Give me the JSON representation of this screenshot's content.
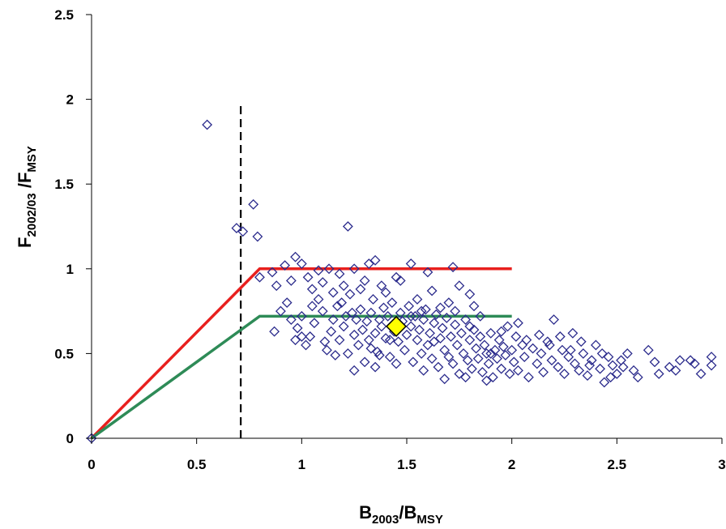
{
  "chart_data": {
    "type": "scatter",
    "xlabel": {
      "base1": "B",
      "sub1": "2003",
      "base2": "/B",
      "sub2": "MSY"
    },
    "ylabel": {
      "base1": "F",
      "sub1": "2002/03",
      "base2": " /F",
      "sub2": "MSY"
    },
    "xlim": [
      0,
      3
    ],
    "ylim": [
      0,
      2.5
    ],
    "x_ticks": [
      "0",
      "0.5",
      "1",
      "1.5",
      "2",
      "2.5",
      "3"
    ],
    "y_ticks": [
      "0",
      "0.5",
      "1",
      "1.5",
      "2",
      "2.5"
    ],
    "grid": false,
    "legend": "none",
    "reference_lines": [
      {
        "kind": "vertical-dashed",
        "x": 0.71,
        "y_range": [
          0,
          1.96
        ],
        "color": "#000000"
      },
      {
        "kind": "polyline",
        "color": "#e8201e",
        "points": [
          [
            0,
            0
          ],
          [
            0.8,
            1.0
          ],
          [
            2.0,
            1.0
          ]
        ]
      },
      {
        "kind": "polyline",
        "color": "#2e8b57",
        "points": [
          [
            0,
            0
          ],
          [
            0.8,
            0.72
          ],
          [
            2.0,
            0.72
          ]
        ]
      }
    ],
    "highlight_point": {
      "x": 1.45,
      "y": 0.66,
      "fill": "#ffff00",
      "stroke": "#000000"
    },
    "series": [
      {
        "marker": "open-diamond",
        "color": "#2b2b8c",
        "points": [
          [
            0.0,
            0.0
          ],
          [
            0.55,
            1.85
          ],
          [
            0.69,
            1.24
          ],
          [
            0.72,
            1.22
          ],
          [
            0.77,
            1.38
          ],
          [
            0.79,
            1.19
          ],
          [
            1.22,
            1.25
          ],
          [
            0.8,
            0.95
          ],
          [
            0.86,
            0.98
          ],
          [
            0.88,
            0.9
          ],
          [
            0.92,
            1.02
          ],
          [
            0.95,
            0.93
          ],
          [
            0.97,
            1.07
          ],
          [
            1.0,
            1.03
          ],
          [
            1.03,
            0.95
          ],
          [
            1.08,
            0.99
          ],
          [
            1.13,
            1.0
          ],
          [
            1.18,
            0.97
          ],
          [
            1.25,
            1.0
          ],
          [
            1.32,
            1.03
          ],
          [
            1.35,
            1.05
          ],
          [
            1.52,
            1.03
          ],
          [
            1.6,
            0.98
          ],
          [
            1.72,
            1.01
          ],
          [
            1.8,
            0.85
          ],
          [
            1.47,
            0.93
          ],
          [
            1.38,
            0.9
          ],
          [
            1.28,
            0.88
          ],
          [
            0.87,
            0.63
          ],
          [
            0.9,
            0.75
          ],
          [
            0.93,
            0.8
          ],
          [
            0.97,
            0.58
          ],
          [
            0.98,
            0.65
          ],
          [
            1.0,
            0.72
          ],
          [
            1.02,
            0.55
          ],
          [
            1.04,
            0.6
          ],
          [
            1.06,
            0.68
          ],
          [
            1.08,
            0.82
          ],
          [
            1.1,
            0.75
          ],
          [
            1.12,
            0.52
          ],
          [
            1.14,
            0.63
          ],
          [
            1.15,
            0.7
          ],
          [
            1.17,
            0.78
          ],
          [
            1.18,
            0.58
          ],
          [
            1.2,
            0.66
          ],
          [
            1.21,
            0.72
          ],
          [
            1.22,
            0.5
          ],
          [
            1.23,
            0.85
          ],
          [
            1.25,
            0.61
          ],
          [
            1.26,
            0.7
          ],
          [
            1.27,
            0.55
          ],
          [
            1.28,
            0.76
          ],
          [
            1.29,
            0.64
          ],
          [
            1.3,
            0.45
          ],
          [
            1.31,
            0.69
          ],
          [
            1.32,
            0.58
          ],
          [
            1.33,
            0.74
          ],
          [
            1.34,
            0.82
          ],
          [
            1.35,
            0.62
          ],
          [
            1.36,
            0.51
          ],
          [
            1.37,
            0.7
          ],
          [
            1.38,
            0.66
          ],
          [
            1.39,
            0.77
          ],
          [
            1.4,
            0.59
          ],
          [
            1.41,
            0.72
          ],
          [
            1.42,
            0.48
          ],
          [
            1.43,
            0.8
          ],
          [
            1.44,
            0.63
          ],
          [
            1.46,
            0.57
          ],
          [
            1.47,
            0.74
          ],
          [
            1.48,
            0.69
          ],
          [
            1.49,
            0.52
          ],
          [
            1.5,
            0.61
          ],
          [
            1.51,
            0.78
          ],
          [
            1.52,
            0.66
          ],
          [
            1.53,
            0.45
          ],
          [
            1.54,
            0.72
          ],
          [
            1.55,
            0.58
          ],
          [
            1.56,
            0.64
          ],
          [
            1.57,
            0.5
          ],
          [
            1.58,
            0.7
          ],
          [
            1.59,
            0.76
          ],
          [
            1.6,
            0.55
          ],
          [
            1.61,
            0.62
          ],
          [
            1.62,
            0.47
          ],
          [
            1.63,
            0.68
          ],
          [
            1.64,
            0.73
          ],
          [
            1.65,
            0.42
          ],
          [
            1.66,
            0.59
          ],
          [
            1.67,
            0.65
          ],
          [
            1.68,
            0.52
          ],
          [
            1.69,
            0.71
          ],
          [
            1.7,
            0.48
          ],
          [
            1.71,
            0.6
          ],
          [
            1.72,
            0.44
          ],
          [
            1.73,
            0.67
          ],
          [
            1.74,
            0.55
          ],
          [
            1.75,
            0.38
          ],
          [
            1.76,
            0.62
          ],
          [
            1.77,
            0.5
          ],
          [
            1.78,
            0.7
          ],
          [
            1.79,
            0.46
          ],
          [
            1.8,
            0.58
          ],
          [
            1.81,
            0.41
          ],
          [
            1.82,
            0.64
          ],
          [
            1.83,
            0.53
          ],
          [
            1.84,
            0.47
          ],
          [
            1.85,
            0.6
          ],
          [
            1.86,
            0.39
          ],
          [
            1.87,
            0.55
          ],
          [
            1.88,
            0.5
          ],
          [
            1.89,
            0.44
          ],
          [
            1.9,
            0.62
          ],
          [
            1.91,
            0.36
          ],
          [
            1.92,
            0.52
          ],
          [
            1.93,
            0.47
          ],
          [
            1.94,
            0.58
          ],
          [
            1.95,
            0.41
          ],
          [
            1.96,
            0.54
          ],
          [
            1.97,
            0.49
          ],
          [
            1.98,
            0.66
          ],
          [
            1.99,
            0.38
          ],
          [
            2.0,
            0.52
          ],
          [
            2.01,
            0.45
          ],
          [
            2.02,
            0.6
          ],
          [
            2.03,
            0.4
          ],
          [
            2.05,
            0.55
          ],
          [
            2.06,
            0.48
          ],
          [
            2.08,
            0.36
          ],
          [
            2.1,
            0.53
          ],
          [
            2.12,
            0.44
          ],
          [
            2.14,
            0.5
          ],
          [
            2.15,
            0.39
          ],
          [
            2.17,
            0.57
          ],
          [
            2.19,
            0.46
          ],
          [
            2.2,
            0.7
          ],
          [
            2.22,
            0.42
          ],
          [
            2.24,
            0.52
          ],
          [
            2.25,
            0.38
          ],
          [
            2.27,
            0.48
          ],
          [
            2.29,
            0.62
          ],
          [
            2.3,
            0.44
          ],
          [
            2.32,
            0.4
          ],
          [
            2.34,
            0.5
          ],
          [
            2.36,
            0.37
          ],
          [
            2.38,
            0.46
          ],
          [
            2.4,
            0.55
          ],
          [
            2.42,
            0.41
          ],
          [
            2.44,
            0.33
          ],
          [
            2.46,
            0.48
          ],
          [
            2.48,
            0.43
          ],
          [
            2.5,
            0.38
          ],
          [
            2.52,
            0.46
          ],
          [
            2.55,
            0.5
          ],
          [
            2.6,
            0.36
          ],
          [
            2.65,
            0.52
          ],
          [
            2.7,
            0.38
          ],
          [
            2.75,
            0.42
          ],
          [
            2.8,
            0.46
          ],
          [
            2.87,
            0.44
          ],
          [
            2.9,
            0.38
          ],
          [
            2.95,
            0.48
          ],
          [
            2.95,
            0.43
          ],
          [
            1.05,
            0.88
          ],
          [
            1.1,
            0.92
          ],
          [
            1.15,
            0.86
          ],
          [
            1.2,
            0.9
          ],
          [
            1.3,
            0.93
          ],
          [
            1.4,
            0.86
          ],
          [
            1.45,
            0.95
          ],
          [
            1.55,
            0.82
          ],
          [
            1.62,
            0.87
          ],
          [
            1.7,
            0.8
          ],
          [
            1.75,
            0.9
          ],
          [
            1.82,
            0.78
          ],
          [
            1.25,
            0.4
          ],
          [
            1.35,
            0.42
          ],
          [
            1.45,
            0.44
          ],
          [
            1.58,
            0.4
          ],
          [
            1.68,
            0.35
          ],
          [
            1.78,
            0.36
          ],
          [
            1.88,
            0.34
          ],
          [
            0.95,
            0.7
          ],
          [
            1.0,
            0.6
          ],
          [
            1.05,
            0.78
          ],
          [
            1.11,
            0.57
          ],
          [
            1.16,
            0.49
          ],
          [
            1.19,
            0.8
          ],
          [
            1.24,
            0.74
          ],
          [
            1.33,
            0.53
          ],
          [
            1.37,
            0.49
          ],
          [
            1.42,
            0.58
          ],
          [
            1.52,
            0.72
          ],
          [
            1.57,
            0.75
          ],
          [
            1.63,
            0.57
          ],
          [
            1.66,
            0.77
          ],
          [
            1.73,
            0.75
          ],
          [
            1.8,
            0.66
          ],
          [
            1.85,
            0.72
          ],
          [
            1.9,
            0.5
          ],
          [
            1.95,
            0.63
          ],
          [
            2.03,
            0.68
          ],
          [
            2.07,
            0.58
          ],
          [
            2.13,
            0.61
          ],
          [
            2.18,
            0.55
          ],
          [
            2.23,
            0.6
          ],
          [
            2.28,
            0.52
          ],
          [
            2.33,
            0.57
          ],
          [
            2.37,
            0.43
          ],
          [
            2.43,
            0.5
          ],
          [
            2.47,
            0.36
          ],
          [
            2.53,
            0.42
          ],
          [
            2.58,
            0.4
          ],
          [
            2.68,
            0.45
          ],
          [
            2.78,
            0.4
          ],
          [
            2.85,
            0.46
          ]
        ]
      }
    ]
  }
}
